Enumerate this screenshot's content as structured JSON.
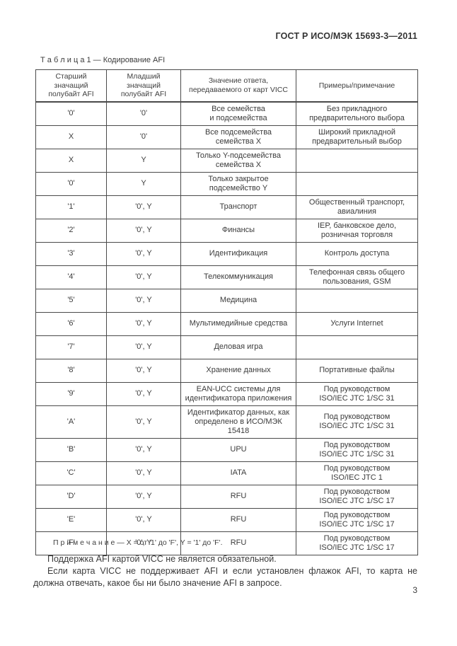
{
  "page": {
    "doc_number": "ГОСТ Р ИСО/МЭК 15693-3—2011",
    "page_number": "3"
  },
  "table": {
    "title": "Т а б л и ц а  1 — Кодирование AFI",
    "headers": [
      "Старший значащий\nполубайт AFI",
      "Младший значащий\nполубайт AFI",
      "Значение ответа,\nпередаваемого от карт VICC",
      "Примеры/примечание"
    ],
    "rows": [
      [
        "'0'",
        "'0'",
        "Все семейства\nи подсемейства",
        "Без прикладного\nпредварительного выбора"
      ],
      [
        "X",
        "'0'",
        "Все подсемейства\nсемейства X",
        "Широкий прикладной\nпредварительный выбор"
      ],
      [
        "X",
        "Y",
        "Только Y-подсемейства\nсемейства X",
        ""
      ],
      [
        "'0'",
        "Y",
        "Только закрытое\nподсемейство Y",
        ""
      ],
      [
        "'1'",
        "'0', Y",
        "Транспорт",
        "Общественный транспорт,\nавиалиния"
      ],
      [
        "'2'",
        "'0', Y",
        "Финансы",
        "IEP, банковское дело,\nрозничная торговля"
      ],
      [
        "'3'",
        "'0', Y",
        "Идентификация",
        "Контроль доступа"
      ],
      [
        "'4'",
        "'0', Y",
        "Телекоммуникация",
        "Телефонная связь общего\nпользования, GSM"
      ],
      [
        "'5'",
        "'0', Y",
        "Медицина",
        ""
      ],
      [
        "'6'",
        "'0', Y",
        "Мультимедийные средства",
        "Услуги Internet"
      ],
      [
        "'7'",
        "'0', Y",
        "Деловая игра",
        ""
      ],
      [
        "'8'",
        "'0', Y",
        "Хранение данных",
        "Портативные файлы"
      ],
      [
        "'9'",
        "'0', Y",
        "EAN-UCC системы для\nидентификатора приложения",
        "Под руководством\nISO/IEC JTC 1/SC 31"
      ],
      [
        "'A'",
        "'0', Y",
        "Идентификатор данных, как\nопределено в ИСО/МЭК 15418",
        "Под руководством\nISO/IEC JTC 1/SC 31"
      ],
      [
        "'B'",
        "'0', Y",
        "UPU",
        "Под руководством\nISO/IEC JTC 1/SC 31"
      ],
      [
        "'C'",
        "'0', Y",
        "IATA",
        "Под руководством\nISO/IEC JTC 1"
      ],
      [
        "'D'",
        "'0', Y",
        "RFU",
        "Под руководством\nISO/IEC JTC 1/SC 17"
      ],
      [
        "'E'",
        "'0', Y",
        "RFU",
        "Под руководством\nISO/IEC JTC 1/SC 17"
      ],
      [
        "'F'",
        "'0', Y",
        "RFU",
        "Под руководством\nISO/IEC JTC 1/SC 17"
      ]
    ]
  },
  "notes": {
    "note": "П р и м е ч а н и е — X = от '1' до 'F', Y = '1' до 'F'.",
    "para1": "Поддержка AFI картой VICC не является обязательной.",
    "para2": "Если карта VICC не поддерживает AFI и если установлен флажок AFI, то карта не должна отвечать, какое бы ни было значение AFI в запросе."
  },
  "colors": {
    "text": "#3b3b3b",
    "border": "#4a4a4a",
    "background": "#ffffff"
  }
}
